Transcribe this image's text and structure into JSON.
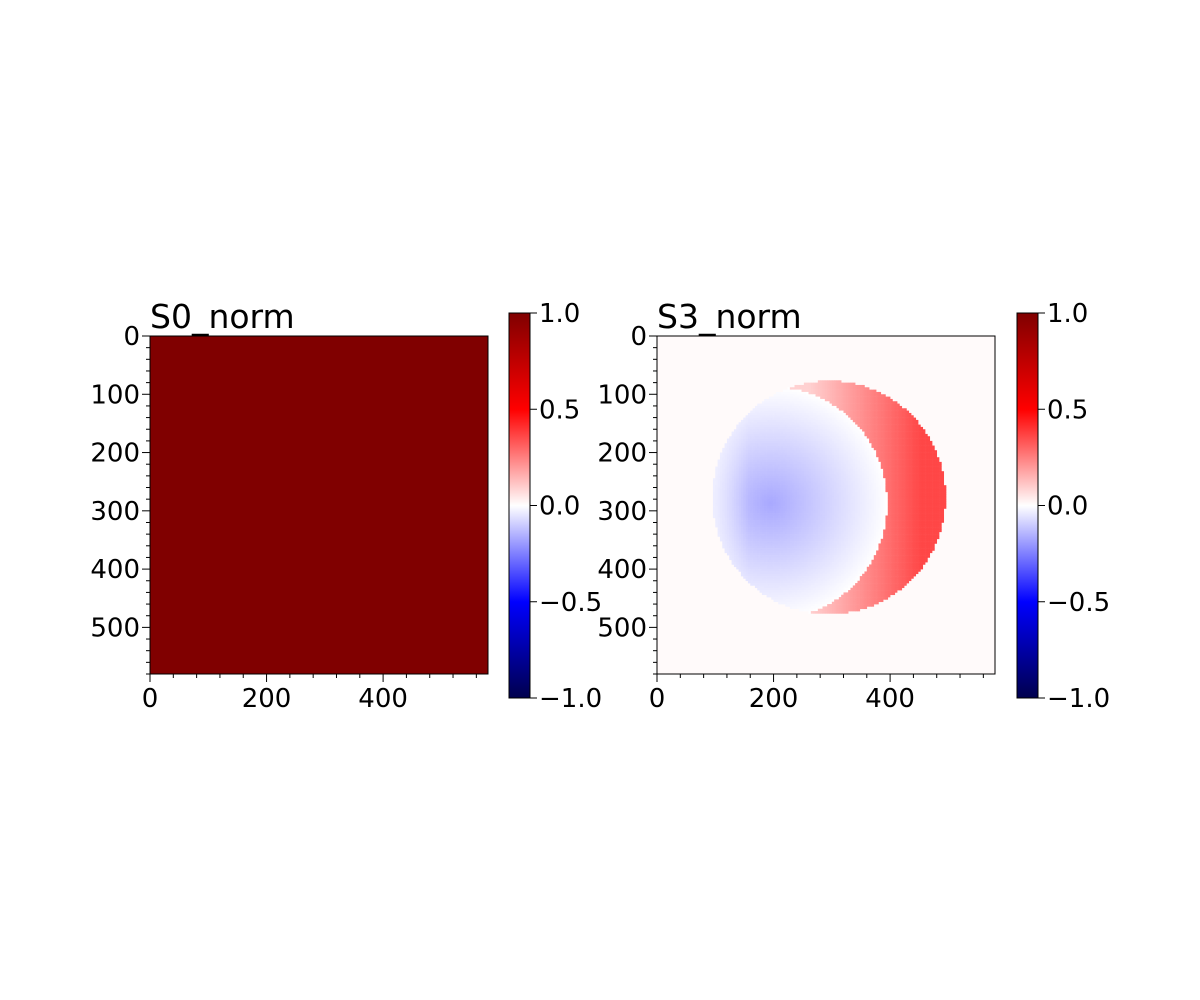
{
  "chart_data": [
    {
      "type": "heatmap",
      "title": "S0_norm",
      "colormap": "seismic",
      "clim": [
        -1.0,
        1.0
      ],
      "xlim": [
        0,
        580
      ],
      "ylim": [
        580,
        0
      ],
      "xticks": [
        0,
        200,
        400
      ],
      "yticks": [
        0,
        100,
        200,
        300,
        400,
        500
      ],
      "xtick_labels": [
        "0",
        "200",
        "400"
      ],
      "ytick_labels": [
        "0",
        "100",
        "200",
        "300",
        "400",
        "500"
      ],
      "colorbar_ticks": [
        1.0,
        0.5,
        0.0,
        -0.5,
        -1.0
      ],
      "colorbar_tick_labels": [
        "1.0",
        "0.5",
        "0.0",
        "−0.5",
        "−1.0"
      ],
      "field": {
        "kind": "uniform",
        "value": 1.0
      }
    },
    {
      "type": "heatmap",
      "title": "S3_norm",
      "colormap": "seismic",
      "clim": [
        -1.0,
        1.0
      ],
      "xlim": [
        0,
        580
      ],
      "ylim": [
        580,
        0
      ],
      "xticks": [
        0,
        200,
        400
      ],
      "yticks": [
        0,
        100,
        200,
        300,
        400,
        500
      ],
      "xtick_labels": [
        "0",
        "200",
        "400"
      ],
      "ytick_labels": [
        "0",
        "100",
        "200",
        "300",
        "400",
        "500"
      ],
      "colorbar_ticks": [
        1.0,
        0.5,
        0.0,
        -0.5,
        -1.0
      ],
      "colorbar_tick_labels": [
        "1.0",
        "0.5",
        "0.0",
        "−0.5",
        "−1.0"
      ],
      "field": {
        "kind": "disk",
        "background_value": 0.01,
        "disk_center": [
          295,
          277
        ],
        "disk_radius": 200,
        "crescent_center": [
          195,
          287
        ],
        "crescent_radius": 200,
        "min_value": -0.17,
        "max_value": 0.36,
        "edge_low_x": 100,
        "edge_high_x": 490
      }
    }
  ]
}
